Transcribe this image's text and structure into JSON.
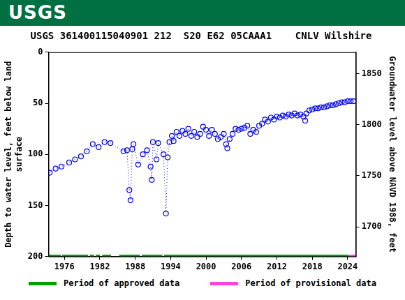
{
  "header": "USGS",
  "chart_data": {
    "type": "scatter",
    "title": "USGS 361400115040901 212  S20 E62 05CAAA1    CNLV Wilshire",
    "y_label": [
      "Depth to water level, feet below land",
      "surface"
    ],
    "y2_label": "Groundwater level above NAVD 1988, feet",
    "xlim": [
      1973.3,
      2025.4
    ],
    "xticks": [
      1976,
      1982,
      1988,
      1994,
      2000,
      2006,
      2012,
      2018,
      2024
    ],
    "ylim": [
      0,
      200
    ],
    "yticks": [
      0,
      50,
      100,
      150,
      200
    ],
    "y2lim": [
      1671,
      1871
    ],
    "y2ticks": [
      1700,
      1750,
      1800,
      1850
    ],
    "grid": false,
    "legend": "bottom",
    "series": [
      {
        "name": "Depth to water level",
        "color": "#0000ff",
        "marker": "circle",
        "line_style": "dotted",
        "x": [
          1973.5,
          1974.5,
          1975.5,
          1976.8,
          1977.8,
          1978.8,
          1979.8,
          1980.8,
          1981.8,
          1982.8,
          1983.8,
          1986.0,
          1986.6,
          1987.0,
          1987.2,
          1987.5,
          1987.7,
          1988.5,
          1989.3,
          1990.0,
          1990.6,
          1990.8,
          1991.0,
          1991.6,
          1991.9,
          1992.8,
          1993.2,
          1993.5,
          1993.8,
          1994.2,
          1994.5,
          1995.0,
          1995.5,
          1996.0,
          1996.5,
          1997.0,
          1997.5,
          1998.0,
          1998.5,
          1999.0,
          1999.5,
          2000.0,
          2000.5,
          2001.0,
          2001.5,
          2002.0,
          2002.5,
          2003.0,
          2003.4,
          2003.6,
          2004.0,
          2004.5,
          2005.0,
          2005.5,
          2006.0,
          2006.5,
          2007.0,
          2007.5,
          2008.0,
          2008.5,
          2009.0,
          2009.5,
          2010.0,
          2010.5,
          2011.0,
          2011.5,
          2012.0,
          2012.5,
          2013.0,
          2013.5,
          2014.0,
          2014.5,
          2015.0,
          2015.5,
          2016.0,
          2016.5,
          2016.8,
          2017.0,
          2017.5,
          2018.0,
          2018.5,
          2019.0,
          2019.5,
          2020.0,
          2020.5,
          2021.0,
          2021.5,
          2022.0,
          2022.5,
          2023.0,
          2023.5,
          2024.0,
          2024.5,
          2025.0
        ],
        "values": [
          118,
          114,
          112,
          108,
          105,
          102,
          97,
          90,
          93,
          88,
          89,
          97,
          96,
          135,
          145,
          95,
          90,
          110,
          100,
          96,
          112,
          125,
          88,
          105,
          89,
          100,
          158,
          103,
          88,
          82,
          87,
          78,
          82,
          77,
          80,
          75,
          82,
          78,
          83,
          80,
          73,
          76,
          82,
          76,
          80,
          85,
          83,
          80,
          90,
          94,
          85,
          80,
          75,
          76,
          75,
          74,
          72,
          80,
          76,
          78,
          72,
          70,
          66,
          68,
          64,
          66,
          63,
          64,
          62,
          63,
          61,
          62,
          60,
          62,
          61,
          63,
          67,
          60,
          57,
          56,
          55,
          55,
          54,
          54,
          53,
          52,
          52,
          51,
          50,
          49,
          49,
          48,
          48,
          48
        ]
      }
    ],
    "periods": [
      {
        "name": "Period of approved data",
        "color": "#00a000",
        "ranges": [
          [
            1973.3,
            1975.4
          ],
          [
            1975.6,
            1980.0
          ],
          [
            1980.3,
            1981.0
          ],
          [
            1981.3,
            1982.0
          ],
          [
            1982.4,
            1983.9
          ],
          [
            1985.3,
            1988.8
          ],
          [
            1989.1,
            1992.6
          ],
          [
            1992.9,
            2024.2
          ]
        ]
      },
      {
        "name": "Period of provisional data",
        "color": "#ff44dd",
        "ranges": [
          [
            2024.2,
            2025.4
          ]
        ]
      }
    ]
  }
}
